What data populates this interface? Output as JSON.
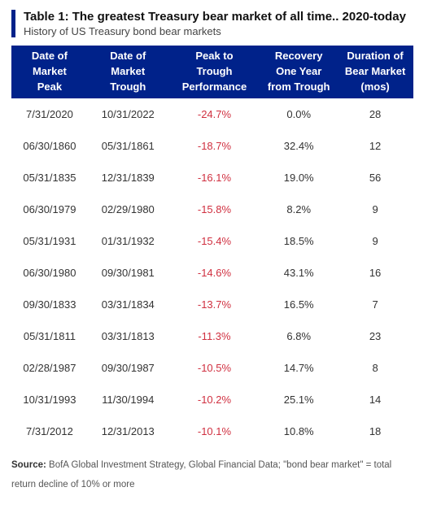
{
  "header": {
    "title": "Table 1: The greatest Treasury bear market of all time.. 2020-today",
    "subtitle": "History of US Treasury bond bear markets",
    "accent_color": "#00228a"
  },
  "table": {
    "type": "table",
    "header_bg": "#00228a",
    "header_fg": "#ffffff",
    "neg_color": "#d03040",
    "columns": [
      {
        "l1": "Date of",
        "l2": "Market",
        "l3": "Peak"
      },
      {
        "l1": "Date of",
        "l2": "Market",
        "l3": "Trough"
      },
      {
        "l1": "Peak to",
        "l2": "Trough",
        "l3": "Performance"
      },
      {
        "l1": "Recovery",
        "l2": "One Year",
        "l3": "from Trough"
      },
      {
        "l1": "Duration of",
        "l2": "Bear Market",
        "l3": "(mos)"
      }
    ],
    "rows": [
      {
        "peak": "7/31/2020",
        "trough": "10/31/2022",
        "perf": "-24.7%",
        "recovery": "0.0%",
        "duration": "28"
      },
      {
        "peak": "06/30/1860",
        "trough": "05/31/1861",
        "perf": "-18.7%",
        "recovery": "32.4%",
        "duration": "12"
      },
      {
        "peak": "05/31/1835",
        "trough": "12/31/1839",
        "perf": "-16.1%",
        "recovery": "19.0%",
        "duration": "56"
      },
      {
        "peak": "06/30/1979",
        "trough": "02/29/1980",
        "perf": "-15.8%",
        "recovery": "8.2%",
        "duration": "9"
      },
      {
        "peak": "05/31/1931",
        "trough": "01/31/1932",
        "perf": "-15.4%",
        "recovery": "18.5%",
        "duration": "9"
      },
      {
        "peak": "06/30/1980",
        "trough": "09/30/1981",
        "perf": "-14.6%",
        "recovery": "43.1%",
        "duration": "16"
      },
      {
        "peak": "09/30/1833",
        "trough": "03/31/1834",
        "perf": "-13.7%",
        "recovery": "16.5%",
        "duration": "7"
      },
      {
        "peak": "05/31/1811",
        "trough": "03/31/1813",
        "perf": "-11.3%",
        "recovery": "6.8%",
        "duration": "23"
      },
      {
        "peak": "02/28/1987",
        "trough": "09/30/1987",
        "perf": "-10.5%",
        "recovery": "14.7%",
        "duration": "8"
      },
      {
        "peak": "10/31/1993",
        "trough": "11/30/1994",
        "perf": "-10.2%",
        "recovery": "25.1%",
        "duration": "14"
      },
      {
        "peak": "7/31/2012",
        "trough": "12/31/2013",
        "perf": "-10.1%",
        "recovery": "10.8%",
        "duration": "18"
      }
    ]
  },
  "source": {
    "label": "Source:",
    "text": " BofA Global Investment Strategy, Global Financial Data; \"bond bear market\" = total return decline of 10% or more"
  }
}
